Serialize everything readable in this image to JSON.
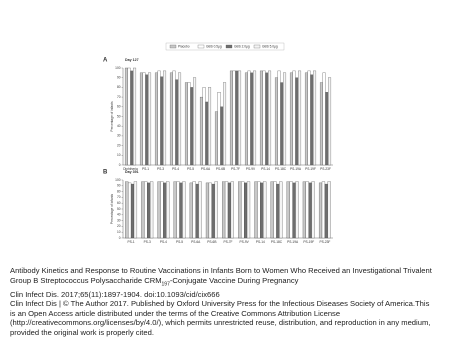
{
  "chart_data": [
    {
      "type": "bar",
      "panel": "A",
      "subtitle": "Day 127",
      "ylabel": "Percentage of infants",
      "categories": [
        "Diphtheria",
        "PS-1",
        "PS-3",
        "PS-4",
        "PS-5",
        "PS-6A",
        "PS-6B",
        "PS-7F",
        "PS-9V",
        "PS-14",
        "PS-18C",
        "PS-19A",
        "PS-19F",
        "PS-23F"
      ],
      "series": [
        {
          "name": "Placebo",
          "color": "#c8c8c8",
          "values": [
            100,
            95,
            95,
            95,
            85,
            70,
            55,
            97,
            95,
            97,
            90,
            95,
            95,
            85
          ]
        },
        {
          "name": "GBS 0.5µg",
          "color": "#ffffff",
          "values": [
            100,
            95,
            97,
            97,
            85,
            80,
            75,
            97,
            97,
            97,
            97,
            97,
            97,
            95
          ]
        },
        {
          "name": "GBS 2.0µg",
          "color": "#6e6e6e",
          "values": [
            97,
            93,
            91,
            88,
            80,
            65,
            60,
            97,
            95,
            95,
            85,
            90,
            93,
            75
          ]
        },
        {
          "name": "GBS 5.0µg",
          "color": "#f4f4f4",
          "values": [
            100,
            95,
            97,
            95,
            90,
            80,
            85,
            97,
            97,
            97,
            95,
            97,
            97,
            90
          ]
        }
      ],
      "ylim": [
        0,
        100
      ],
      "yticks": [
        0,
        10,
        20,
        30,
        40,
        50,
        60,
        70,
        80,
        90,
        100
      ]
    },
    {
      "type": "bar",
      "panel": "B",
      "subtitle": "Day 391",
      "ylabel": "Percentage of infants",
      "categories": [
        "PS-1",
        "PS-3",
        "PS-4",
        "PS-5",
        "PS-6A",
        "PS-6B",
        "PS-7F",
        "PS-9V",
        "PS-14",
        "PS-18C",
        "PS-19A",
        "PS-19F",
        "PS-23F"
      ],
      "series": [
        {
          "color": "#c8c8c8",
          "values": [
            97,
            97,
            97,
            97,
            95,
            95,
            97,
            97,
            97,
            97,
            97,
            97,
            95
          ]
        },
        {
          "color": "#ffffff",
          "values": [
            95,
            97,
            97,
            97,
            97,
            95,
            97,
            97,
            97,
            97,
            97,
            97,
            97
          ]
        },
        {
          "color": "#6e6e6e",
          "values": [
            93,
            95,
            95,
            95,
            93,
            93,
            95,
            95,
            95,
            93,
            95,
            95,
            93
          ]
        },
        {
          "color": "#f4f4f4",
          "values": [
            97,
            97,
            97,
            97,
            97,
            97,
            97,
            97,
            97,
            97,
            97,
            97,
            97
          ]
        }
      ],
      "ylim": [
        0,
        100
      ],
      "yticks": [
        0,
        10,
        20,
        30,
        40,
        50,
        60,
        70,
        80,
        90,
        100
      ]
    }
  ],
  "caption": {
    "title": "Antibody Kinetics and Response to Routine Vaccinations in Infants Born to Women Who Received an Investigational Trivalent Group B Streptococcus Polysaccharide CRM",
    "title_subscript": "197",
    "title_end": "-Conjugate Vaccine During Pregnancy",
    "citation": "Clin Infect Dis. 2017;65(11):1897-1904. doi:10.1093/cid/cix666",
    "license": "Clin Infect Dis | © The Author 2017. Published by Oxford University Press for the Infectious Diseases Society of America.This is an Open Access article distributed under the terms of the Creative Commons Attribution License (http://creativecommons.org/licenses/by/4.0/), which permits unrestricted reuse, distribution, and reproduction in any medium, provided the original work is properly cited."
  }
}
